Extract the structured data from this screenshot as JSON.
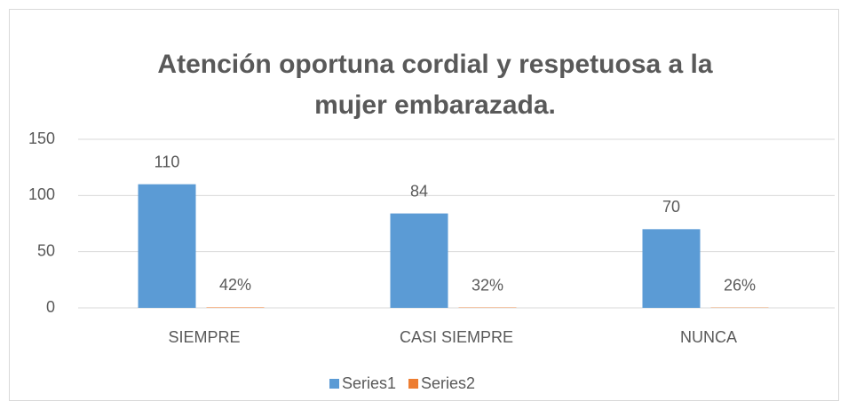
{
  "chart_data": {
    "type": "bar",
    "title": "Atención oportuna cordial y respetuosa a la mujer embarazada.",
    "categories": [
      "SIEMPRE",
      "CASI SIEMPRE",
      "NUNCA"
    ],
    "series": [
      {
        "name": "Series1",
        "color": "#5b9bd5",
        "values": [
          110,
          84,
          70
        ]
      },
      {
        "name": "Series2",
        "color": "#ed7d31",
        "values": [
          0.42,
          0.32,
          0.26
        ],
        "value_labels": [
          "42%",
          "32%",
          "26%"
        ]
      }
    ],
    "ylim": [
      0,
      150
    ],
    "yticks": [
      0,
      50,
      100,
      150
    ],
    "grid": true,
    "legend": "bottom"
  }
}
